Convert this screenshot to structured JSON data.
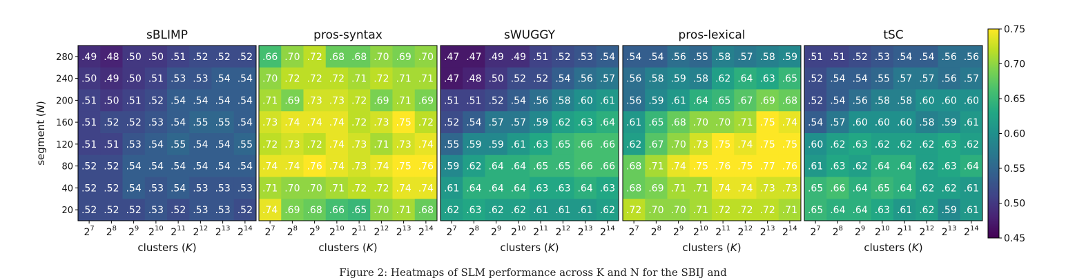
{
  "chart_data": {
    "type": "heatmap",
    "ylabel_text": "segment (",
    "ylabel_var": "N",
    "ylabel_close": ")",
    "xlabel_text": "clusters (",
    "xlabel_var": "K",
    "xlabel_close": ")",
    "x_base": "2",
    "x_exponents": [
      "7",
      "8",
      "9",
      "10",
      "11",
      "12",
      "13",
      "14"
    ],
    "y_ticks": [
      "280",
      "240",
      "200",
      "160",
      "120",
      "80",
      "40",
      "20"
    ],
    "colorbar": {
      "colormap": "viridis",
      "vmin": 0.45,
      "vmax": 0.75,
      "ticks": [
        "0.75",
        "0.70",
        "0.65",
        "0.60",
        "0.55",
        "0.50",
        "0.45"
      ]
    },
    "panels": [
      {
        "title": "sBLIMP",
        "rows": [
          [
            0.49,
            0.48,
            0.5,
            0.5,
            0.51,
            0.52,
            0.52,
            0.52
          ],
          [
            0.5,
            0.49,
            0.5,
            0.51,
            0.53,
            0.53,
            0.54,
            0.54
          ],
          [
            0.51,
            0.5,
            0.51,
            0.52,
            0.54,
            0.54,
            0.54,
            0.54
          ],
          [
            0.51,
            0.52,
            0.52,
            0.53,
            0.54,
            0.55,
            0.55,
            0.54
          ],
          [
            0.51,
            0.51,
            0.53,
            0.54,
            0.55,
            0.54,
            0.54,
            0.55
          ],
          [
            0.52,
            0.52,
            0.54,
            0.54,
            0.54,
            0.54,
            0.54,
            0.54
          ],
          [
            0.52,
            0.52,
            0.54,
            0.53,
            0.54,
            0.53,
            0.53,
            0.53
          ],
          [
            0.52,
            0.52,
            0.52,
            0.53,
            0.52,
            0.53,
            0.53,
            0.52
          ]
        ]
      },
      {
        "title": "pros-syntax",
        "rows": [
          [
            0.66,
            0.7,
            0.72,
            0.68,
            0.68,
            0.7,
            0.69,
            0.7
          ],
          [
            0.7,
            0.72,
            0.72,
            0.72,
            0.71,
            0.72,
            0.71,
            0.71
          ],
          [
            0.71,
            0.69,
            0.73,
            0.73,
            0.72,
            0.69,
            0.71,
            0.69
          ],
          [
            0.73,
            0.74,
            0.74,
            0.74,
            0.72,
            0.73,
            0.75,
            0.72
          ],
          [
            0.72,
            0.73,
            0.72,
            0.74,
            0.73,
            0.71,
            0.73,
            0.74
          ],
          [
            0.74,
            0.74,
            0.76,
            0.74,
            0.73,
            0.74,
            0.75,
            0.76
          ],
          [
            0.71,
            0.7,
            0.7,
            0.71,
            0.72,
            0.72,
            0.74,
            0.74
          ],
          [
            0.74,
            0.69,
            0.68,
            0.66,
            0.65,
            0.7,
            0.71,
            0.68
          ]
        ]
      },
      {
        "title": "sWUGGY",
        "rows": [
          [
            0.47,
            0.47,
            0.49,
            0.49,
            0.51,
            0.52,
            0.53,
            0.54
          ],
          [
            0.47,
            0.48,
            0.5,
            0.52,
            0.52,
            0.54,
            0.56,
            0.57
          ],
          [
            0.51,
            0.51,
            0.52,
            0.54,
            0.56,
            0.58,
            0.6,
            0.61
          ],
          [
            0.52,
            0.54,
            0.57,
            0.57,
            0.59,
            0.62,
            0.63,
            0.64
          ],
          [
            0.55,
            0.59,
            0.59,
            0.61,
            0.63,
            0.65,
            0.66,
            0.66
          ],
          [
            0.59,
            0.62,
            0.64,
            0.64,
            0.65,
            0.65,
            0.66,
            0.66
          ],
          [
            0.61,
            0.64,
            0.64,
            0.64,
            0.63,
            0.63,
            0.64,
            0.63
          ],
          [
            0.62,
            0.63,
            0.62,
            0.62,
            0.61,
            0.61,
            0.61,
            0.62
          ]
        ]
      },
      {
        "title": "pros-lexical",
        "rows": [
          [
            0.54,
            0.54,
            0.56,
            0.55,
            0.58,
            0.57,
            0.58,
            0.59
          ],
          [
            0.56,
            0.58,
            0.59,
            0.58,
            0.62,
            0.64,
            0.63,
            0.65
          ],
          [
            0.56,
            0.59,
            0.61,
            0.64,
            0.65,
            0.67,
            0.69,
            0.68
          ],
          [
            0.61,
            0.65,
            0.68,
            0.7,
            0.7,
            0.71,
            0.75,
            0.74
          ],
          [
            0.62,
            0.67,
            0.7,
            0.73,
            0.75,
            0.74,
            0.75,
            0.75
          ],
          [
            0.68,
            0.71,
            0.74,
            0.75,
            0.76,
            0.75,
            0.77,
            0.76
          ],
          [
            0.68,
            0.69,
            0.71,
            0.71,
            0.74,
            0.74,
            0.73,
            0.73
          ],
          [
            0.72,
            0.7,
            0.7,
            0.71,
            0.72,
            0.72,
            0.72,
            0.71
          ]
        ]
      },
      {
        "title": "tSC",
        "rows": [
          [
            0.51,
            0.51,
            0.52,
            0.53,
            0.54,
            0.54,
            0.56,
            0.56
          ],
          [
            0.52,
            0.54,
            0.54,
            0.55,
            0.57,
            0.57,
            0.56,
            0.57
          ],
          [
            0.52,
            0.54,
            0.56,
            0.58,
            0.58,
            0.6,
            0.6,
            0.6
          ],
          [
            0.54,
            0.57,
            0.6,
            0.6,
            0.6,
            0.58,
            0.59,
            0.61
          ],
          [
            0.6,
            0.62,
            0.63,
            0.62,
            0.62,
            0.62,
            0.63,
            0.62
          ],
          [
            0.61,
            0.63,
            0.62,
            0.64,
            0.64,
            0.62,
            0.63,
            0.64
          ],
          [
            0.65,
            0.66,
            0.64,
            0.65,
            0.64,
            0.62,
            0.62,
            0.61
          ],
          [
            0.65,
            0.64,
            0.64,
            0.63,
            0.61,
            0.62,
            0.59,
            0.61
          ]
        ]
      }
    ]
  },
  "caption": "Figure 2: Heatmaps of SLM performance across K and N for the SBIJ and"
}
